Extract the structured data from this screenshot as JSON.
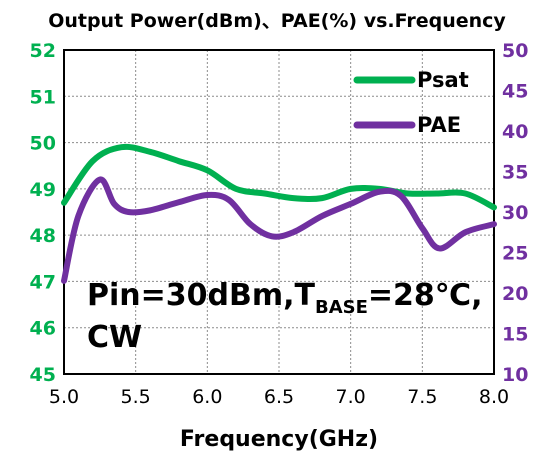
{
  "chart_data": {
    "type": "line",
    "title": "Output Power(dBm)、PAE(%) vs.Frequency",
    "xlabel": "Frequency(GHz)",
    "xlim": [
      5.0,
      8.0
    ],
    "x_ticks": [
      "5.0",
      "5.5",
      "6.0",
      "6.5",
      "7.0",
      "7.5",
      "8.0"
    ],
    "y_left": {
      "lim": [
        45,
        52
      ],
      "ticks": [
        "45",
        "46",
        "47",
        "48",
        "49",
        "50",
        "51",
        "52"
      ],
      "color": "#00b050"
    },
    "y_right": {
      "lim": [
        10,
        50
      ],
      "ticks": [
        "10",
        "15",
        "20",
        "25",
        "30",
        "35",
        "40",
        "45",
        "50"
      ],
      "color": "#7030a0"
    },
    "grid": true,
    "legend_position": "top-right",
    "annotation": {
      "line1_prefix": "Pin=30dBm,T",
      "line1_subscript": "BASE",
      "line1_suffix": "=28℃,",
      "line2": "CW"
    },
    "series": [
      {
        "name": "Psat",
        "axis": "left",
        "color": "#00b050",
        "x": [
          5.0,
          5.2,
          5.4,
          5.6,
          5.8,
          6.0,
          6.2,
          6.4,
          6.6,
          6.8,
          7.0,
          7.2,
          7.4,
          7.6,
          7.8,
          8.0
        ],
        "values": [
          48.7,
          49.6,
          49.9,
          49.8,
          49.6,
          49.4,
          49.0,
          48.9,
          48.8,
          48.8,
          49.0,
          49.0,
          48.9,
          48.9,
          48.9,
          48.6
        ]
      },
      {
        "name": "PAE",
        "axis": "right",
        "color": "#7030a0",
        "x": [
          5.0,
          5.1,
          5.25,
          5.35,
          5.45,
          5.6,
          5.8,
          6.0,
          6.15,
          6.3,
          6.45,
          6.6,
          6.8,
          7.0,
          7.2,
          7.35,
          7.5,
          7.62,
          7.8,
          8.0
        ],
        "values": [
          21.5,
          29.5,
          34.0,
          31.0,
          30.0,
          30.2,
          31.2,
          32.1,
          31.5,
          28.5,
          27.0,
          27.5,
          29.5,
          31.0,
          32.5,
          32.0,
          28.0,
          25.5,
          27.5,
          28.5
        ]
      }
    ]
  }
}
